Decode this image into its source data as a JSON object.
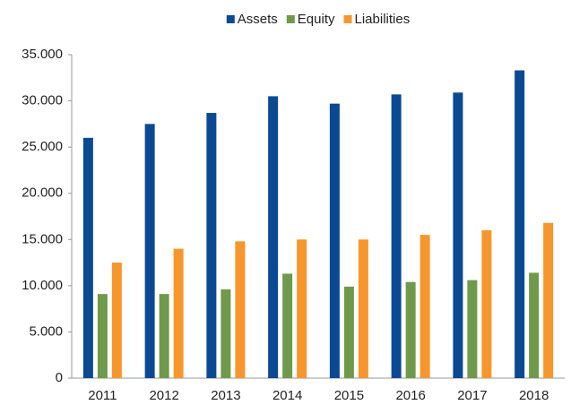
{
  "chart_data": {
    "type": "bar",
    "categories": [
      "2011",
      "2012",
      "2013",
      "2014",
      "2015",
      "2016",
      "2017",
      "2018"
    ],
    "series": [
      {
        "name": "Assets",
        "color": "#0b4a93",
        "values": [
          26000,
          27500,
          28700,
          30500,
          29700,
          30700,
          30900,
          33300
        ]
      },
      {
        "name": "Equity",
        "color": "#6f9a4b",
        "values": [
          9100,
          9100,
          9600,
          11300,
          9900,
          10400,
          10600,
          11400
        ]
      },
      {
        "name": "Liabilities",
        "color": "#f7962c",
        "values": [
          12500,
          14000,
          14800,
          15000,
          15000,
          15500,
          16000,
          16800
        ]
      }
    ],
    "ylim": [
      0,
      35000
    ],
    "yticks": [
      0,
      {
        "value": 5000,
        "label": "5.000"
      },
      {
        "value": 10000,
        "label": "10.000"
      },
      {
        "value": 15000,
        "label": "15.000"
      },
      {
        "value": 20000,
        "label": "20.000"
      },
      {
        "value": 25000,
        "label": "25.000"
      },
      {
        "value": 30000,
        "label": "30.000"
      },
      {
        "value": 35000,
        "label": "35.000"
      }
    ],
    "grid": false,
    "legend": "top"
  }
}
